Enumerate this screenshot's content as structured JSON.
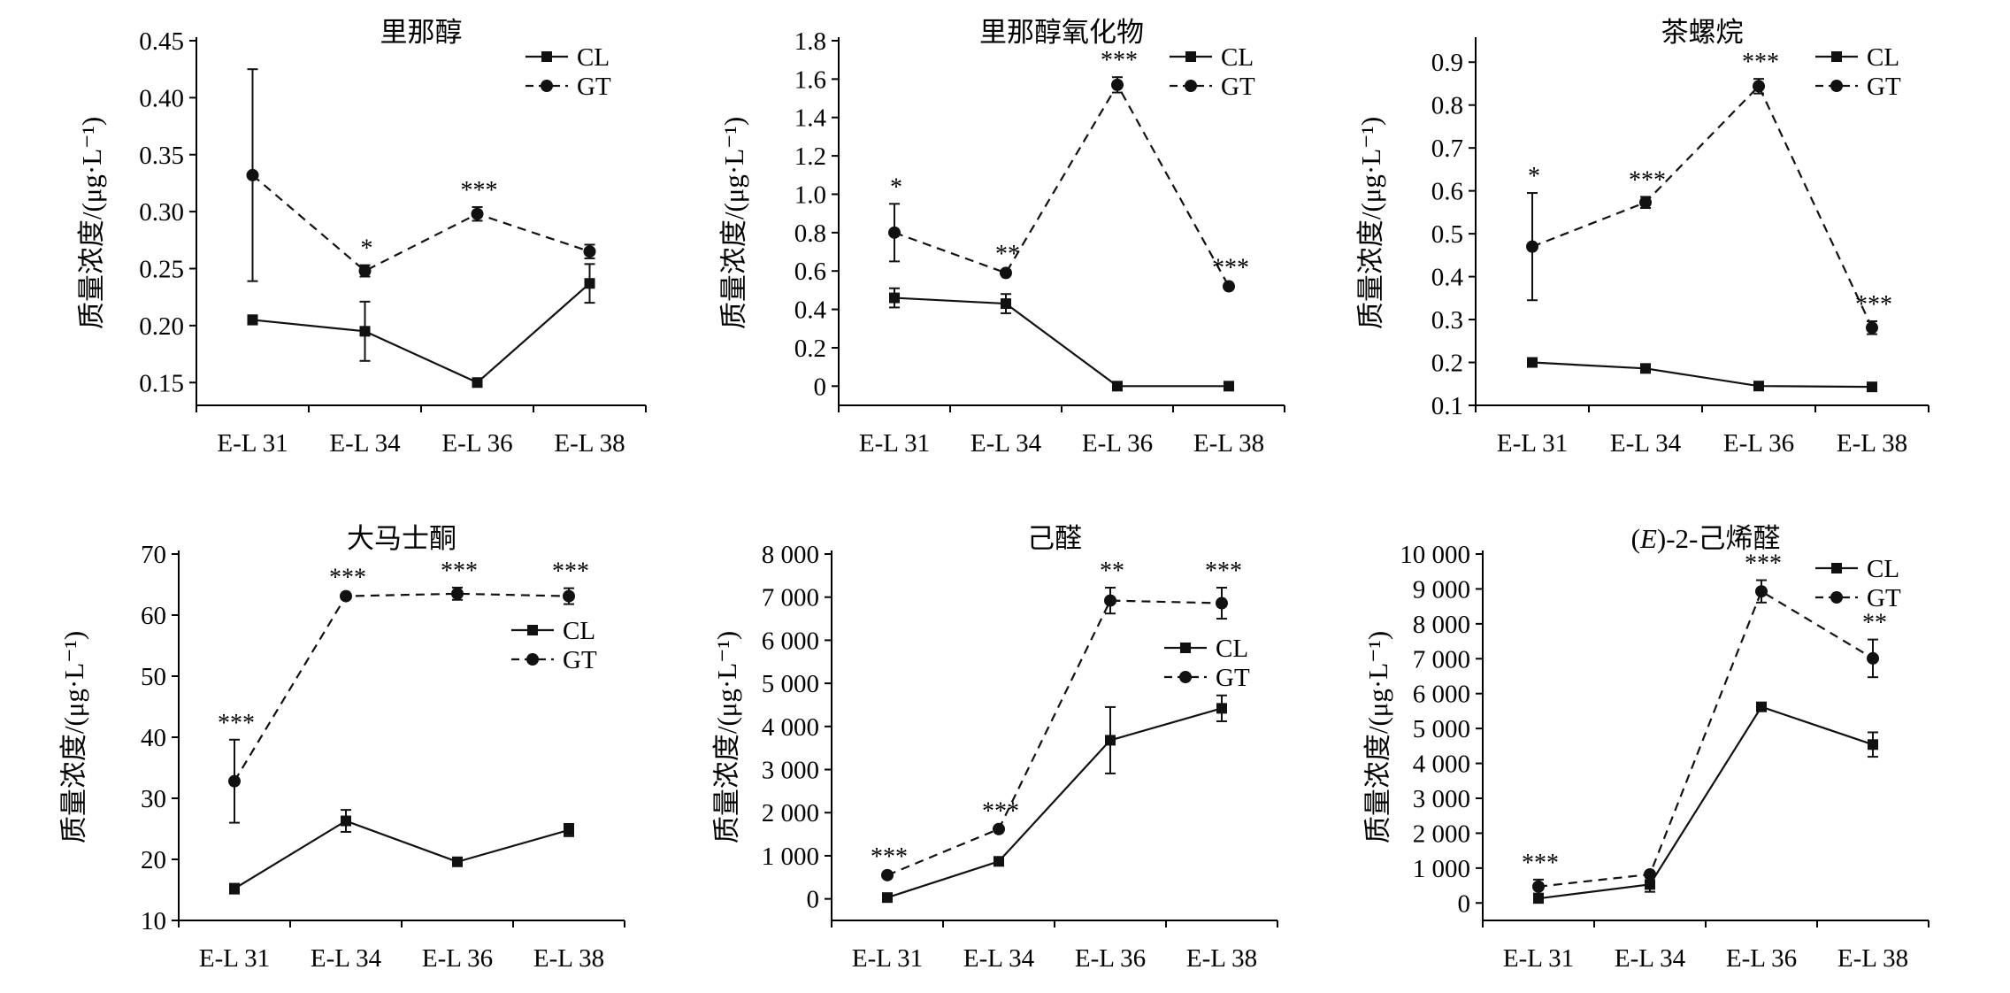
{
  "figure": {
    "ylabel": "质量浓度/(μg·L⁻¹)"
  },
  "chart_data": [
    {
      "type": "line",
      "title": "里那醇",
      "xlabel": "",
      "ylabel": "质量浓度/(μg·L⁻¹)",
      "categories": [
        "E-L 31",
        "E-L 34",
        "E-L 36",
        "E-L 38"
      ],
      "ylim": [
        0.13,
        0.45
      ],
      "yticks": [
        0.45,
        0.4,
        0.35,
        0.3,
        0.25,
        0.2,
        0.15
      ],
      "ytick_labels": [
        "0.45",
        "0.40",
        "0.35",
        "0.30",
        "0.25",
        "0.20",
        "0.15"
      ],
      "legend_position": "top-right",
      "series": [
        {
          "name": "CL",
          "style": "solid",
          "marker": "square",
          "values": [
            0.205,
            0.195,
            0.15,
            0.237
          ],
          "errors": [
            0.004,
            0.026,
            0.001,
            0.017
          ]
        },
        {
          "name": "GT",
          "style": "dashed",
          "marker": "circle",
          "values": [
            0.332,
            0.248,
            0.298,
            0.265
          ],
          "errors": [
            0.093,
            0.005,
            0.006,
            0.006
          ]
        }
      ],
      "annotations": [
        {
          "category": "E-L 34",
          "text": "*"
        },
        {
          "category": "E-L 36",
          "text": "***"
        }
      ]
    },
    {
      "type": "line",
      "title": "里那醇氧化物",
      "xlabel": "",
      "ylabel": "质量浓度/(μg·L⁻¹)",
      "categories": [
        "E-L 31",
        "E-L 34",
        "E-L 36",
        "E-L 38"
      ],
      "ylim": [
        -0.1,
        1.8
      ],
      "yticks": [
        1.8,
        1.6,
        1.4,
        1.2,
        1.0,
        0.8,
        0.6,
        0.4,
        0.2,
        0
      ],
      "ytick_labels": [
        "1.8",
        "1.6",
        "1.4",
        "1.2",
        "1.0",
        "0.8",
        "0.6",
        "0.4",
        "0.2",
        "0"
      ],
      "legend_position": "top-right",
      "series": [
        {
          "name": "CL",
          "style": "solid",
          "marker": "square",
          "values": [
            0.46,
            0.43,
            0.0,
            0.0
          ],
          "errors": [
            0.05,
            0.05,
            0.0,
            0.0
          ]
        },
        {
          "name": "GT",
          "style": "dashed",
          "marker": "circle",
          "values": [
            0.8,
            0.59,
            1.57,
            0.52
          ],
          "errors": [
            0.15,
            0.01,
            0.04,
            0.01
          ]
        }
      ],
      "annotations": [
        {
          "category": "E-L 31",
          "text": "*"
        },
        {
          "category": "E-L 34",
          "text": "**"
        },
        {
          "category": "E-L 36",
          "text": "***"
        },
        {
          "category": "E-L 38",
          "text": "***"
        }
      ]
    },
    {
      "type": "line",
      "title": "茶螺烷",
      "xlabel": "",
      "ylabel": "质量浓度/(μg·L⁻¹)",
      "categories": [
        "E-L 31",
        "E-L 34",
        "E-L 36",
        "E-L 38"
      ],
      "ylim": [
        0.1,
        0.95
      ],
      "yticks": [
        0.9,
        0.8,
        0.7,
        0.6,
        0.5,
        0.4,
        0.3,
        0.2,
        0.1
      ],
      "ytick_labels": [
        "0.9",
        "0.8",
        "0.7",
        "0.6",
        "0.5",
        "0.4",
        "0.3",
        "0.2",
        "0.1"
      ],
      "legend_position": "top-right",
      "series": [
        {
          "name": "CL",
          "style": "solid",
          "marker": "square",
          "values": [
            0.2,
            0.186,
            0.145,
            0.143
          ],
          "errors": [
            0.01,
            0.005,
            0.002,
            0.002
          ]
        },
        {
          "name": "GT",
          "style": "dashed",
          "marker": "circle",
          "values": [
            0.47,
            0.573,
            0.844,
            0.281
          ],
          "errors": [
            0.125,
            0.013,
            0.017,
            0.015
          ]
        }
      ],
      "annotations": [
        {
          "category": "E-L 31",
          "text": "*"
        },
        {
          "category": "E-L 34",
          "text": "***"
        },
        {
          "category": "E-L 36",
          "text": "***"
        },
        {
          "category": "E-L 38",
          "text": "***"
        }
      ]
    },
    {
      "type": "line",
      "title": "大马士酮",
      "xlabel": "",
      "ylabel": "质量浓度/(μg·L⁻¹)",
      "categories": [
        "E-L 31",
        "E-L 34",
        "E-L 36",
        "E-L 38"
      ],
      "ylim": [
        10,
        70
      ],
      "yticks": [
        70,
        60,
        50,
        40,
        30,
        20,
        10
      ],
      "ytick_labels": [
        "70",
        "60",
        "50",
        "40",
        "30",
        "20",
        "10"
      ],
      "legend_position": "right",
      "series": [
        {
          "name": "CL",
          "style": "solid",
          "marker": "square",
          "values": [
            15.2,
            26.3,
            19.6,
            24.8
          ],
          "errors": [
            0.8,
            1.8,
            0.4,
            1.0
          ]
        },
        {
          "name": "GT",
          "style": "dashed",
          "marker": "circle",
          "values": [
            32.8,
            63.1,
            63.5,
            63.1
          ],
          "errors": [
            6.8,
            0.3,
            1.0,
            1.3
          ]
        }
      ],
      "annotations": [
        {
          "category": "E-L 31",
          "text": "***"
        },
        {
          "category": "E-L 34",
          "text": "***"
        },
        {
          "category": "E-L 36",
          "text": "***"
        },
        {
          "category": "E-L 38",
          "text": "***"
        }
      ]
    },
    {
      "type": "line",
      "title": "己醛",
      "xlabel": "",
      "ylabel": "质量浓度/(μg·L⁻¹)",
      "categories": [
        "E-L 31",
        "E-L 34",
        "E-L 36",
        "E-L 38"
      ],
      "ylim": [
        -500,
        8000
      ],
      "yticks": [
        8000,
        7000,
        6000,
        5000,
        4000,
        3000,
        2000,
        1000,
        0
      ],
      "ytick_labels": [
        "8 000",
        "7 000",
        "6 000",
        "5 000",
        "4 000",
        "3 000",
        "2 000",
        "1 000",
        "0"
      ],
      "legend_position": "right",
      "series": [
        {
          "name": "CL",
          "style": "solid",
          "marker": "square",
          "values": [
            30,
            870,
            3680,
            4420
          ],
          "errors": [
            10,
            30,
            770,
            300
          ]
        },
        {
          "name": "GT",
          "style": "dashed",
          "marker": "circle",
          "values": [
            550,
            1620,
            6920,
            6860
          ],
          "errors": [
            40,
            30,
            300,
            360
          ]
        }
      ],
      "annotations": [
        {
          "category": "E-L 31",
          "text": "***"
        },
        {
          "category": "E-L 34",
          "text": "***"
        },
        {
          "category": "E-L 36",
          "text": "**"
        },
        {
          "category": "E-L 38",
          "text": "***"
        }
      ]
    },
    {
      "type": "line",
      "title": "(E)-2-己烯醛",
      "xlabel": "",
      "ylabel": "质量浓度/(μg·L⁻¹)",
      "categories": [
        "E-L 31",
        "E-L 34",
        "E-L 36",
        "E-L 38"
      ],
      "ylim": [
        -500,
        10000
      ],
      "yticks": [
        10000,
        9000,
        8000,
        7000,
        6000,
        5000,
        4000,
        3000,
        2000,
        1000,
        0
      ],
      "ytick_labels": [
        "10 000",
        "9 000",
        "8 000",
        "7 000",
        "6 000",
        "5 000",
        "4 000",
        "3 000",
        "2 000",
        "1 000",
        "0"
      ],
      "legend_position": "top-right",
      "series": [
        {
          "name": "CL",
          "style": "solid",
          "marker": "square",
          "values": [
            130,
            530,
            5620,
            4540
          ],
          "errors": [
            20,
            210,
            20,
            350
          ]
        },
        {
          "name": "GT",
          "style": "dashed",
          "marker": "circle",
          "values": [
            470,
            820,
            8930,
            7010
          ],
          "errors": [
            200,
            20,
            320,
            540
          ]
        }
      ],
      "annotations": [
        {
          "category": "E-L 31",
          "text": "***"
        },
        {
          "category": "E-L 36",
          "text": "***"
        },
        {
          "category": "E-L 38",
          "text": "**"
        }
      ]
    }
  ]
}
